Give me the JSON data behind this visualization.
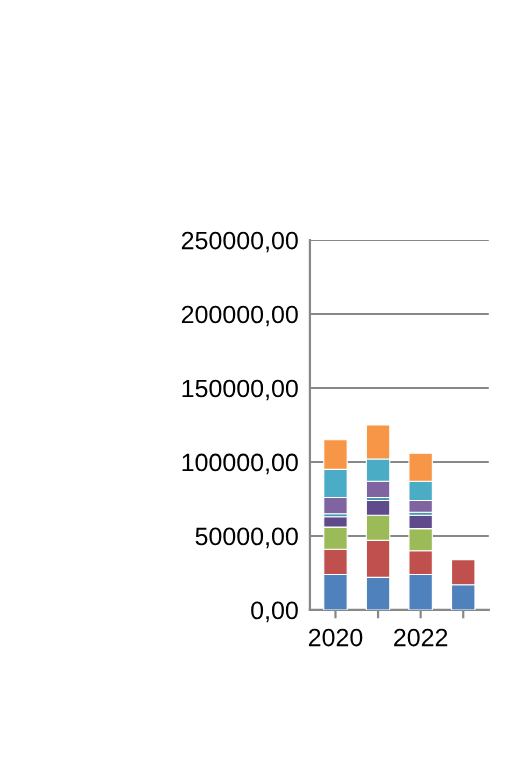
{
  "chart_data": {
    "type": "bar",
    "stacked": true,
    "categories": [
      "2020",
      null,
      "2022",
      null
    ],
    "series": [
      {
        "color": "#4f81bd",
        "values": [
          24000,
          22000,
          24000,
          17000
        ]
      },
      {
        "color": "#c0504d",
        "values": [
          17000,
          25000,
          16000,
          17000
        ]
      },
      {
        "color": "#9bbb59",
        "values": [
          15000,
          17000,
          15000,
          null
        ]
      },
      {
        "color": "#5f4b8b",
        "values": [
          7000,
          10000,
          9000,
          null
        ]
      },
      {
        "color": "#4198af",
        "values": [
          2000,
          2000,
          2000,
          null
        ]
      },
      {
        "color": "#8064a2",
        "values": [
          11000,
          11000,
          8000,
          null
        ]
      },
      {
        "color": "#4bacc6",
        "values": [
          19000,
          15000,
          13000,
          null
        ]
      },
      {
        "color": "#f79646",
        "values": [
          20000,
          23000,
          19000,
          null
        ]
      }
    ],
    "ylim": [
      0,
      250000
    ],
    "yticks": [
      {
        "value": 0,
        "label": "0,00"
      },
      {
        "value": 50000,
        "label": "50000,00"
      },
      {
        "value": 100000,
        "label": "100000,00"
      },
      {
        "value": 150000,
        "label": "150000,00"
      },
      {
        "value": 200000,
        "label": "200000,00"
      },
      {
        "value": 250000,
        "label": "250000,00"
      }
    ],
    "grid": "y",
    "legend": false
  }
}
